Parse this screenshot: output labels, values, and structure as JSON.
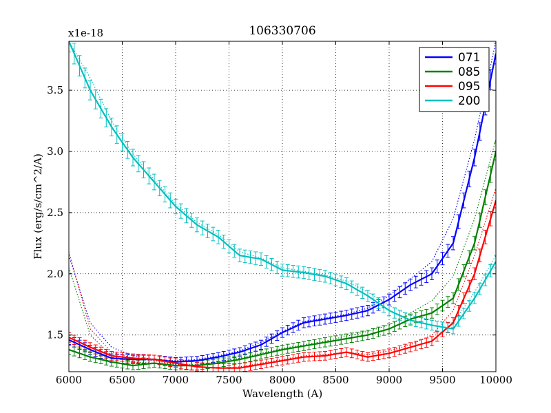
{
  "chart_data": {
    "type": "line",
    "title": "106330706",
    "xlabel": "Wavelength (A)",
    "ylabel": "Flux (erg/s/cm^2/A)",
    "offset_label": "x1e-18",
    "xlim": [
      6000,
      10000
    ],
    "ylim": [
      1.2,
      3.9
    ],
    "x_ticks": [
      6000,
      6500,
      7000,
      7500,
      8000,
      8500,
      9000,
      9500,
      10000
    ],
    "x_tick_labels": [
      "6000",
      "6500",
      "7000",
      "7500",
      "8000",
      "8500",
      "9000",
      "9500",
      "10000"
    ],
    "y_ticks": [
      1.5,
      2.0,
      2.5,
      3.0,
      3.5
    ],
    "y_tick_labels": [
      "1.5",
      "2.0",
      "2.5",
      "3.0",
      "3.5"
    ],
    "grid": true,
    "legend_position": "top-right",
    "x": [
      6000,
      6200,
      6400,
      6600,
      6800,
      7000,
      7200,
      7400,
      7600,
      7800,
      8000,
      8200,
      8400,
      8600,
      8800,
      9000,
      9200,
      9400,
      9600,
      9800,
      10000
    ],
    "series": [
      {
        "name": "071",
        "color": "#0000ff",
        "values": [
          1.46,
          1.38,
          1.31,
          1.3,
          1.3,
          1.28,
          1.29,
          1.32,
          1.36,
          1.42,
          1.52,
          1.6,
          1.63,
          1.66,
          1.7,
          1.79,
          1.91,
          2.0,
          2.25,
          2.95,
          3.8
        ],
        "model": [
          2.15,
          1.6,
          1.4,
          1.33,
          1.3,
          1.29,
          1.3,
          1.33,
          1.37,
          1.44,
          1.53,
          1.61,
          1.64,
          1.67,
          1.72,
          1.82,
          1.96,
          2.1,
          2.45,
          3.1,
          3.9
        ]
      },
      {
        "name": "085",
        "color": "#008000",
        "values": [
          1.38,
          1.32,
          1.28,
          1.25,
          1.27,
          1.25,
          1.25,
          1.27,
          1.3,
          1.34,
          1.38,
          1.41,
          1.44,
          1.47,
          1.5,
          1.55,
          1.63,
          1.68,
          1.8,
          2.25,
          3.0
        ],
        "model": [
          2.05,
          1.5,
          1.33,
          1.28,
          1.27,
          1.26,
          1.26,
          1.28,
          1.31,
          1.35,
          1.39,
          1.42,
          1.45,
          1.49,
          1.53,
          1.58,
          1.68,
          1.78,
          1.98,
          2.45,
          3.1
        ]
      },
      {
        "name": "095",
        "color": "#ff0000",
        "values": [
          1.48,
          1.4,
          1.33,
          1.31,
          1.3,
          1.27,
          1.24,
          1.23,
          1.23,
          1.26,
          1.29,
          1.32,
          1.33,
          1.36,
          1.32,
          1.35,
          1.4,
          1.45,
          1.6,
          2.0,
          2.6
        ],
        "model": [
          2.18,
          1.55,
          1.36,
          1.31,
          1.29,
          1.26,
          1.24,
          1.23,
          1.24,
          1.27,
          1.3,
          1.33,
          1.34,
          1.36,
          1.34,
          1.37,
          1.42,
          1.5,
          1.7,
          2.15,
          2.7
        ]
      },
      {
        "name": "200",
        "color": "#00bfbf",
        "values": [
          3.9,
          3.5,
          3.2,
          2.95,
          2.75,
          2.55,
          2.4,
          2.3,
          2.15,
          2.12,
          2.03,
          2.01,
          1.98,
          1.92,
          1.82,
          1.7,
          1.62,
          1.58,
          1.55,
          1.8,
          2.1
        ],
        "model": [
          3.9,
          3.6,
          3.25,
          2.98,
          2.77,
          2.57,
          2.42,
          2.32,
          2.18,
          2.13,
          2.05,
          2.02,
          1.99,
          1.94,
          1.85,
          1.74,
          1.66,
          1.62,
          1.6,
          1.85,
          2.15
        ]
      }
    ]
  }
}
